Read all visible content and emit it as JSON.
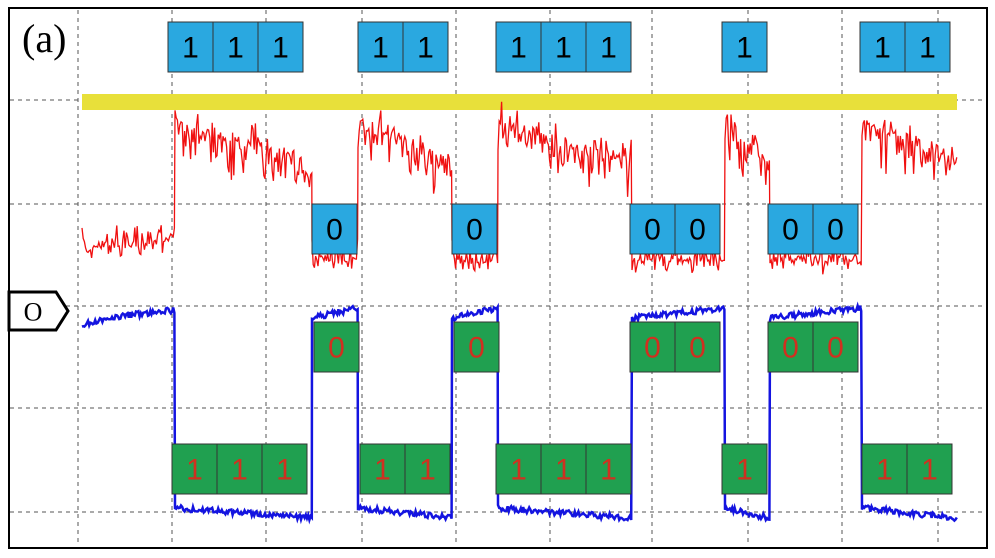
{
  "panel_label": "(a)",
  "marker": "O",
  "upper_ones": [
    [
      "1",
      "1",
      "1"
    ],
    [
      "1",
      "1"
    ],
    [
      "1",
      "1",
      "1"
    ],
    [
      "1"
    ],
    [
      "1",
      "1"
    ]
  ],
  "upper_zeros": [
    [
      "0"
    ],
    [
      "0"
    ],
    [
      "0",
      "0"
    ],
    [
      "0",
      "0"
    ]
  ],
  "lower_zeros": [
    [
      "0"
    ],
    [
      "0"
    ],
    [
      "0",
      "0"
    ],
    [
      "0",
      "0"
    ]
  ],
  "lower_ones": [
    [
      "1",
      "1",
      "1"
    ],
    [
      "1",
      "1"
    ],
    [
      "1",
      "1",
      "1"
    ],
    [
      "1"
    ],
    [
      "1",
      "1"
    ]
  ]
}
